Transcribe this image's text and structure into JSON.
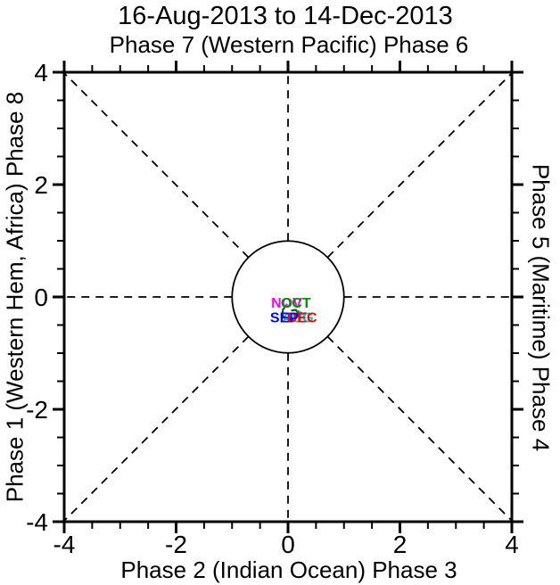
{
  "figure": {
    "title": "16-Aug-2013 to 14-Dec-2013",
    "subtitle": "Phase 7 (Western Pacific) Phase 6",
    "xlabel": "Phase 2 (Indian Ocean) Phase 3",
    "ylabel_left": "Phase 1 (Western Hem, Africa) Phase 8",
    "ylabel_right": "Phase 5 (Maritime) Phase 4"
  },
  "chart_data": {
    "type": "line",
    "title": "16-Aug-2013 to 14-Dec-2013",
    "subtitle": "Phase 7 (Western Pacific) Phase 6",
    "xlabel": "Phase 2 (Indian Ocean) Phase 3",
    "ylabel_left": "Phase 1 (Western Hem, Africa) Phase 8",
    "ylabel_right": "Phase 5 (Maritime) Phase 4",
    "xlim": [
      -4,
      4
    ],
    "ylim": [
      -4,
      4
    ],
    "x_ticks": [
      -4,
      -2,
      0,
      2,
      4
    ],
    "y_ticks": [
      -4,
      -2,
      0,
      2,
      4
    ],
    "x_tick_labels": [
      "-4",
      "-2",
      "0",
      "2",
      "4"
    ],
    "y_tick_labels": [
      "-4",
      "-2",
      "0",
      "2",
      "4"
    ],
    "minor_tick_step": 0.5,
    "grid": false,
    "axis_color": "#000000",
    "dashed_ray_angles_deg": [
      0,
      45,
      90,
      135,
      180,
      225,
      270,
      315
    ],
    "unit_circle_radius": 1,
    "series": [
      {
        "name": "AUG",
        "color": "#00c8c8",
        "points": [
          [
            0.19,
            -0.25
          ],
          [
            0.24,
            -0.29
          ]
        ]
      },
      {
        "name": "SEP",
        "color": "#0000ff",
        "points": [
          [
            0.24,
            -0.29
          ],
          [
            0.2,
            -0.33
          ],
          [
            0.14,
            -0.3
          ]
        ]
      },
      {
        "name": "OCT",
        "color": "#006400",
        "points": [
          [
            -0.02,
            -0.14
          ],
          [
            -0.09,
            -0.22
          ],
          [
            -0.1,
            -0.32
          ],
          [
            -0.04,
            -0.39
          ],
          [
            0.06,
            -0.41
          ],
          [
            0.14,
            -0.38
          ],
          [
            0.19,
            -0.3
          ],
          [
            0.14,
            -0.23
          ],
          [
            0.07,
            -0.24
          ]
        ]
      },
      {
        "name": "NOV",
        "color": "#ff00ff",
        "points": [
          [
            -0.02,
            -0.14
          ],
          [
            -0.06,
            -0.18
          ]
        ]
      },
      {
        "name": "DEC",
        "color": "#ff0000",
        "points": [
          [
            0.22,
            -0.3
          ],
          [
            0.32,
            -0.29
          ],
          [
            0.28,
            -0.35
          ]
        ]
      }
    ],
    "month_labels": [
      {
        "text": "NOV",
        "color": "#ff00ff",
        "x": -0.3,
        "y": -0.19
      },
      {
        "text": "OCT",
        "color": "#009000",
        "x": -0.13,
        "y": -0.19
      },
      {
        "text": "AUG",
        "color": "#00c8c8",
        "x": -0.11,
        "y": -0.45
      },
      {
        "text": "DEC",
        "color": "#ff0000",
        "x": -0.02,
        "y": -0.45
      },
      {
        "text": "SEP",
        "color": "#0000ff",
        "x": -0.32,
        "y": -0.45
      }
    ]
  }
}
